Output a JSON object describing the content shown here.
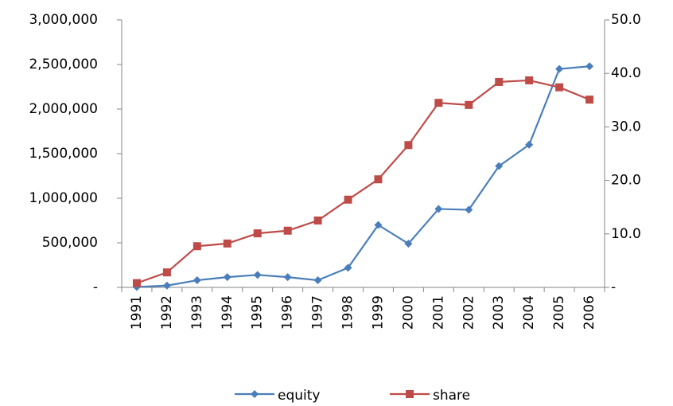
{
  "chart_data": {
    "type": "line",
    "categories": [
      "1991",
      "1992",
      "1993",
      "1994",
      "1995",
      "1996",
      "1997",
      "1998",
      "1999",
      "2000",
      "2001",
      "2002",
      "2003",
      "2004",
      "2005",
      "2006"
    ],
    "series": [
      {
        "name": "equity",
        "color": "#4a7ebb",
        "marker": "diamond",
        "values": [
          5000,
          20000,
          80000,
          115000,
          140000,
          115000,
          80000,
          220000,
          700000,
          490000,
          880000,
          870000,
          1360000,
          1600000,
          2450000,
          2480000
        ]
      },
      {
        "name": "share",
        "color": "#be4b48",
        "marker": "square",
        "axis": "y2",
        "values": [
          0.8,
          2.8,
          7.7,
          8.2,
          10.1,
          10.6,
          12.5,
          16.4,
          20.2,
          26.6,
          34.5,
          34.1,
          38.4,
          38.7,
          37.4,
          35.1
        ]
      }
    ],
    "ylim": [
      0,
      3000000
    ],
    "yticks": [
      {
        "value": 0,
        "label": "-"
      },
      {
        "value": 500000,
        "label": "500,000"
      },
      {
        "value": 1000000,
        "label": "1,000,000"
      },
      {
        "value": 1500000,
        "label": "1,500,000"
      },
      {
        "value": 2000000,
        "label": "2,000,000"
      },
      {
        "value": 2500000,
        "label": "2,500,000"
      },
      {
        "value": 3000000,
        "label": "3,000,000"
      }
    ],
    "y2lim": [
      0,
      50
    ],
    "y2ticks": [
      {
        "value": 0,
        "label": "-"
      },
      {
        "value": 10,
        "label": "10.0"
      },
      {
        "value": 20,
        "label": "20.0"
      },
      {
        "value": 30,
        "label": "30.0"
      },
      {
        "value": 40,
        "label": "40.0"
      },
      {
        "value": 50,
        "label": "50.0"
      }
    ],
    "grid": false,
    "legend": "bottom"
  }
}
